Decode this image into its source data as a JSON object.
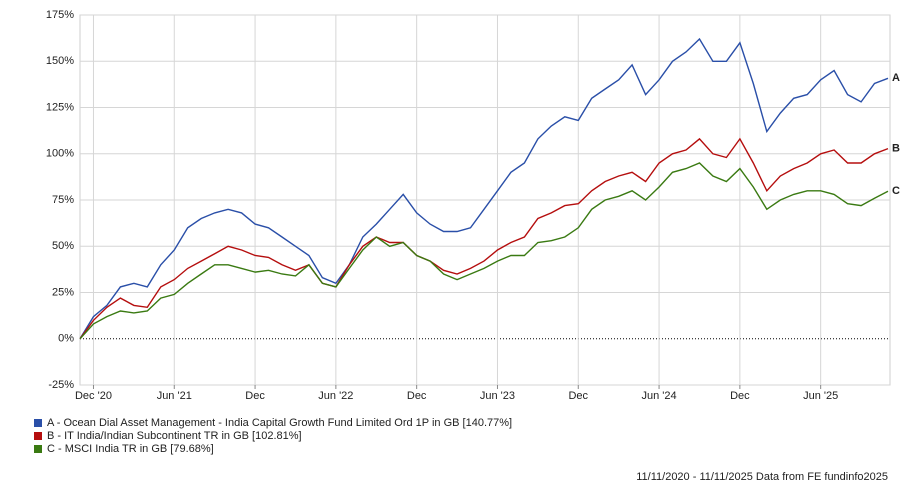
{
  "chart_data": {
    "type": "line",
    "categories": [
      null,
      "Dec '20",
      null,
      null,
      null,
      null,
      null,
      "Jun '21",
      null,
      null,
      null,
      null,
      null,
      "Dec",
      null,
      null,
      null,
      null,
      null,
      "Jun '22",
      null,
      null,
      null,
      null,
      null,
      "Dec",
      null,
      null,
      null,
      null,
      null,
      "Jun '23",
      null,
      null,
      null,
      null,
      null,
      "Dec",
      null,
      null,
      null,
      null,
      null,
      "Jun '24",
      null,
      null,
      null,
      null,
      null,
      "Dec",
      null,
      null,
      null,
      null,
      null,
      "Jun '25",
      null,
      null,
      null,
      null,
      null
    ],
    "ylim": [
      -25,
      175
    ],
    "yticks": [
      {
        "value": -25,
        "label": "-25%"
      },
      {
        "value": 0,
        "label": "0%"
      },
      {
        "value": 25,
        "label": "25%"
      },
      {
        "value": 50,
        "label": "50%"
      },
      {
        "value": 75,
        "label": "75%"
      },
      {
        "value": 100,
        "label": "100%"
      },
      {
        "value": 125,
        "label": "125%"
      },
      {
        "value": 150,
        "label": "150%"
      },
      {
        "value": 175,
        "label": "175%"
      }
    ],
    "grid": true,
    "series": [
      {
        "name": "A - Ocean Dial Asset Management - India Capital Growth Fund Limited Ord 1P in GB [140.77%]",
        "end_label": "A",
        "color": "#2a4fa8",
        "values": [
          0,
          12,
          18,
          28,
          30,
          28,
          40,
          48,
          60,
          65,
          68,
          70,
          68,
          62,
          60,
          55,
          50,
          45,
          33,
          30,
          40,
          55,
          62,
          70,
          78,
          68,
          62,
          58,
          58,
          60,
          70,
          80,
          90,
          95,
          108,
          115,
          120,
          118,
          130,
          135,
          140,
          148,
          132,
          140,
          150,
          155,
          162,
          150,
          150,
          160,
          138,
          112,
          122,
          130,
          132,
          140,
          145,
          132,
          128,
          138,
          140.77
        ]
      },
      {
        "name": "B - IT India/Indian Subcontinent TR in GB [102.81%]",
        "end_label": "B",
        "color": "#b50e0e",
        "values": [
          0,
          10,
          17,
          22,
          18,
          17,
          28,
          32,
          38,
          42,
          46,
          50,
          48,
          45,
          44,
          40,
          37,
          40,
          30,
          28,
          40,
          50,
          55,
          52,
          52,
          45,
          42,
          37,
          35,
          38,
          42,
          48,
          52,
          55,
          65,
          68,
          72,
          73,
          80,
          85,
          88,
          90,
          85,
          95,
          100,
          102,
          108,
          100,
          98,
          108,
          95,
          80,
          88,
          92,
          95,
          100,
          102,
          95,
          95,
          100,
          102.81
        ]
      },
      {
        "name": "C - MSCI India TR in GB [79.68%]",
        "end_label": "C",
        "color": "#3a7a12",
        "values": [
          0,
          8,
          12,
          15,
          14,
          15,
          22,
          24,
          30,
          35,
          40,
          40,
          38,
          36,
          37,
          35,
          34,
          40,
          30,
          28,
          38,
          48,
          55,
          50,
          52,
          45,
          42,
          35,
          32,
          35,
          38,
          42,
          45,
          45,
          52,
          53,
          55,
          60,
          70,
          75,
          77,
          80,
          75,
          82,
          90,
          92,
          95,
          88,
          85,
          92,
          82,
          70,
          75,
          78,
          80,
          80,
          78,
          73,
          72,
          76,
          79.68
        ]
      }
    ],
    "footnote": "11/11/2020 - 11/11/2025 Data from FE fundinfo2025"
  }
}
